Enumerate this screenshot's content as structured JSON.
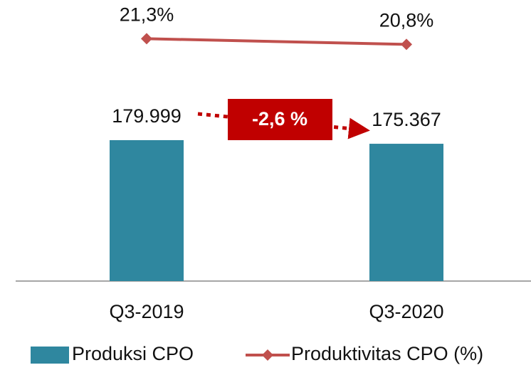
{
  "chart_data": {
    "type": "bar",
    "categories": [
      "Q3-2019",
      "Q3-2020"
    ],
    "series": [
      {
        "name": "Produksi CPO",
        "type": "bar",
        "color": "#2f879f",
        "values": [
          179999,
          175367
        ],
        "value_labels": [
          "179.999",
          "175.367"
        ]
      },
      {
        "name": "Produktivitas CPO (%)",
        "type": "line",
        "axis": "y2",
        "color": "#c0504d",
        "values": [
          21.3,
          20.8
        ],
        "value_labels": [
          "21,3%",
          "20,8%"
        ]
      }
    ],
    "ylim": [
      0,
      359000
    ],
    "y2lim": [
      0,
      24.7
    ],
    "annotation": "-2,6 %"
  }
}
